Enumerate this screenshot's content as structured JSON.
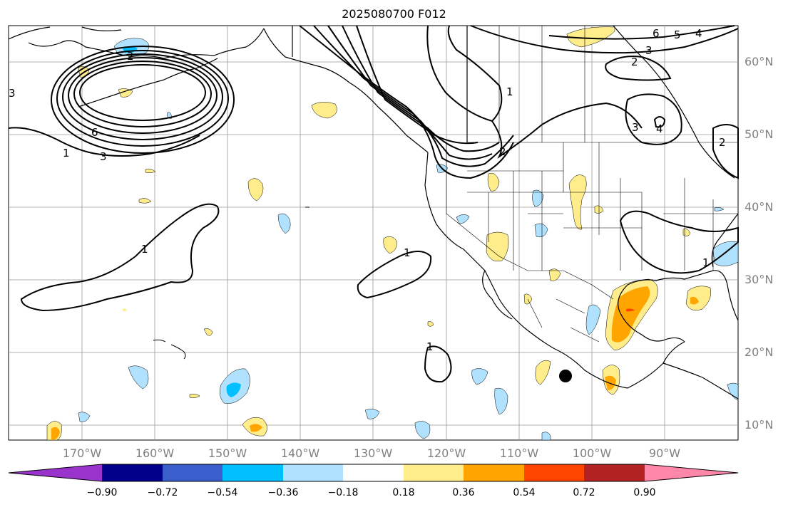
{
  "title": "2025080700 F012",
  "lat_labels": [
    "60°N",
    "50°N",
    "40°N",
    "30°N",
    "20°N",
    "10°N"
  ],
  "lon_labels": [
    "170°W",
    "160°W",
    "150°W",
    "140°W",
    "130°W",
    "120°W",
    "110°W",
    "100°W",
    "90°W"
  ],
  "colorbar": {
    "ticks": [
      "−0.90",
      "−0.72",
      "−0.54",
      "−0.36",
      "−0.18",
      "0.18",
      "0.36",
      "0.54",
      "0.72",
      "0.90"
    ],
    "colors": [
      "#9933cc",
      "#00008b",
      "#3a5fcd",
      "#00bfff",
      "#b0e2ff",
      "#ffffff",
      "#ffec8b",
      "#ffa500",
      "#ff4500",
      "#b22222",
      "#ff88aa"
    ]
  },
  "contour_labels": [
    "2",
    "3",
    "6",
    "3",
    "1",
    "1",
    "1",
    "1",
    "2",
    "1",
    "3",
    "2",
    "6",
    "5",
    "4",
    "4",
    "3",
    "1",
    "2"
  ],
  "colors": {
    "land_line": "#000000",
    "grid": "#999999",
    "contour": "#000000",
    "marker": "#000000"
  }
}
